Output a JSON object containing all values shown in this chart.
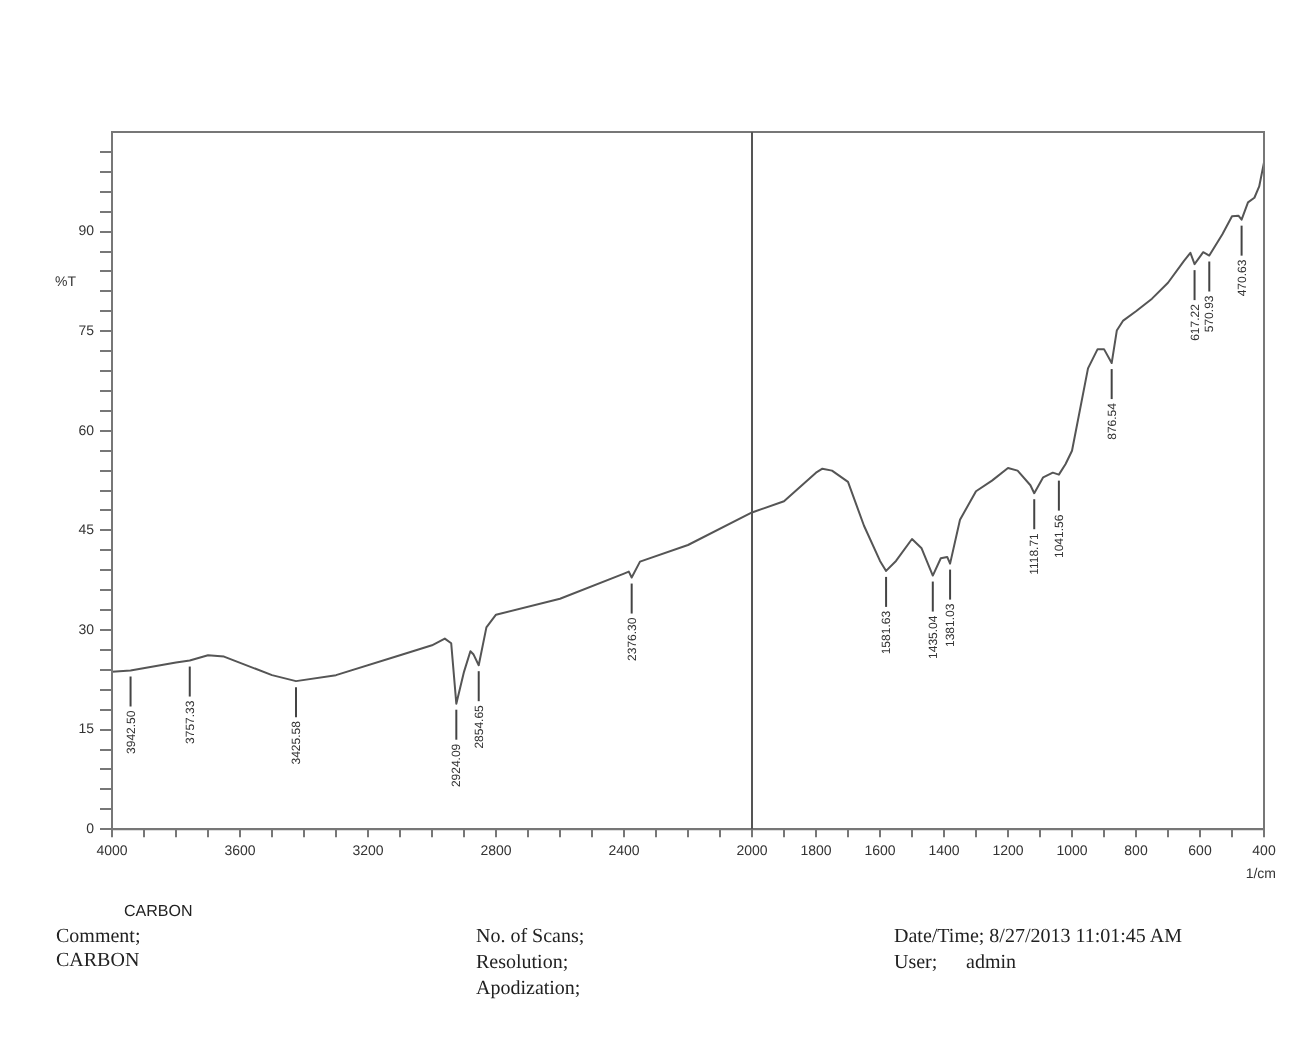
{
  "chart_data": {
    "type": "line",
    "xlabel": "1/cm",
    "ylabel": "%T",
    "x": [
      4000,
      3942,
      3800,
      3757,
      3700,
      3650,
      3500,
      3425,
      3300,
      3100,
      3000,
      2960,
      2940,
      2924,
      2900,
      2880,
      2870,
      2854,
      2830,
      2800,
      2600,
      2400,
      2385,
      2376,
      2350,
      2200,
      2000,
      1900,
      1800,
      1780,
      1750,
      1700,
      1650,
      1600,
      1581,
      1550,
      1500,
      1470,
      1435,
      1410,
      1390,
      1381,
      1350,
      1300,
      1250,
      1200,
      1170,
      1130,
      1118,
      1090,
      1060,
      1041,
      1020,
      1000,
      950,
      920,
      900,
      876,
      860,
      840,
      800,
      750,
      700,
      650,
      630,
      617,
      590,
      571,
      530,
      500,
      480,
      470,
      450,
      430,
      415,
      400
    ],
    "series": [
      {
        "color": "#555555",
        "values": [
          23.7,
          23.9,
          25.1,
          25.4,
          26.2,
          26.0,
          23.2,
          22.3,
          23.2,
          26.2,
          27.7,
          28.7,
          28.0,
          18.9,
          23.7,
          26.8,
          26.3,
          24.7,
          30.4,
          32.3,
          34.7,
          38.5,
          38.8,
          37.9,
          40.3,
          42.8,
          47.7,
          49.4,
          53.7,
          54.3,
          54.0,
          52.3,
          45.7,
          40.4,
          38.9,
          40.4,
          43.7,
          42.3,
          38.2,
          40.8,
          41.0,
          40.0,
          46.6,
          50.9,
          52.5,
          54.4,
          54.0,
          51.8,
          50.6,
          53.0,
          53.7,
          53.4,
          55.0,
          57.0,
          69.4,
          72.3,
          72.3,
          70.2,
          75.1,
          76.6,
          78.0,
          79.9,
          82.3,
          85.6,
          86.8,
          85.1,
          86.9,
          86.4,
          89.6,
          92.3,
          92.4,
          91.8,
          94.4,
          95.1,
          96.8,
          100.4
        ]
      }
    ],
    "xlim": [
      4000,
      400
    ],
    "xticks": [
      4000,
      {
        "value": 3900,
        "label": null
      },
      {
        "value": 3800,
        "label": null
      },
      {
        "value": 3700,
        "label": null
      },
      3600,
      {
        "value": 3500,
        "label": null
      },
      {
        "value": 3400,
        "label": null
      },
      {
        "value": 3300,
        "label": null
      },
      3200,
      {
        "value": 3100,
        "label": null
      },
      {
        "value": 3000,
        "label": null
      },
      {
        "value": 2900,
        "label": null
      },
      2800,
      {
        "value": 2700,
        "label": null
      },
      {
        "value": 2600,
        "label": null
      },
      {
        "value": 2500,
        "label": null
      },
      2400,
      {
        "value": 2300,
        "label": null
      },
      {
        "value": 2200,
        "label": null
      },
      {
        "value": 2100,
        "label": null
      },
      2000,
      {
        "value": 1900,
        "label": null
      },
      1800,
      {
        "value": 1700,
        "label": null
      },
      1600,
      {
        "value": 1500,
        "label": null
      },
      1400,
      {
        "value": 1300,
        "label": null
      },
      1200,
      {
        "value": 1100,
        "label": null
      },
      1000,
      {
        "value": 900,
        "label": null
      },
      800,
      {
        "value": 700,
        "label": null
      },
      600,
      {
        "value": 500,
        "label": null
      },
      400
    ],
    "ylim": [
      0,
      105
    ],
    "yticks": [
      0,
      {
        "value": 3,
        "label": null
      },
      {
        "value": 6,
        "label": null
      },
      {
        "value": 9,
        "label": null
      },
      {
        "value": 12,
        "label": null
      },
      15,
      {
        "value": 18,
        "label": null
      },
      {
        "value": 21,
        "label": null
      },
      {
        "value": 24,
        "label": null
      },
      {
        "value": 27,
        "label": null
      },
      30,
      {
        "value": 33,
        "label": null
      },
      {
        "value": 36,
        "label": null
      },
      {
        "value": 39,
        "label": null
      },
      {
        "value": 42,
        "label": null
      },
      45,
      {
        "value": 48,
        "label": null
      },
      {
        "value": 51,
        "label": null
      },
      {
        "value": 54,
        "label": null
      },
      {
        "value": 57,
        "label": null
      },
      60,
      {
        "value": 63,
        "label": null
      },
      {
        "value": 66,
        "label": null
      },
      {
        "value": 69,
        "label": null
      },
      {
        "value": 72,
        "label": null
      },
      75,
      {
        "value": 78,
        "label": null
      },
      {
        "value": 81,
        "label": null
      },
      {
        "value": 84,
        "label": null
      },
      {
        "value": 87,
        "label": null
      },
      90,
      {
        "value": 93,
        "label": null
      },
      {
        "value": 96,
        "label": null
      },
      {
        "value": 99,
        "label": null
      },
      {
        "value": 102,
        "label": null
      }
    ],
    "grid": false,
    "legend": false,
    "marker": "none",
    "line_style": "solid",
    "ref_lines": [
      {
        "axis": "x",
        "value": 2000,
        "color": "#555555"
      }
    ],
    "annotations": [
      {
        "text": "3942.50",
        "x": 3942,
        "y": 23.9
      },
      {
        "text": "3757.33",
        "x": 3757,
        "y": 25.4
      },
      {
        "text": "3425.58",
        "x": 3425,
        "y": 22.3
      },
      {
        "text": "2924.09",
        "x": 2924,
        "y": 18.9
      },
      {
        "text": "2854.65",
        "x": 2854,
        "y": 24.7
      },
      {
        "text": "2376.30",
        "x": 2376,
        "y": 37.9
      },
      {
        "text": "1581.63",
        "x": 1581,
        "y": 38.9
      },
      {
        "text": "1435.04",
        "x": 1435,
        "y": 38.2
      },
      {
        "text": "1381.03",
        "x": 1381,
        "y": 40.0
      },
      {
        "text": "1118.71",
        "x": 1118,
        "y": 50.6
      },
      {
        "text": "1041.56",
        "x": 1041,
        "y": 53.4
      },
      {
        "text": "876.54",
        "x": 876,
        "y": 70.2
      },
      {
        "text": "617.22",
        "x": 617,
        "y": 85.1
      },
      {
        "text": "570.93",
        "x": 571,
        "y": 86.4
      },
      {
        "text": "470.63",
        "x": 470,
        "y": 91.8
      },
      "CARBON",
      "Comment;",
      "CARBON",
      "No. of Scans;",
      "Resolution;",
      "Apodization;",
      "Date/Time; 8/27/2013 11:01:45 AM",
      "User;",
      "admin"
    ]
  }
}
